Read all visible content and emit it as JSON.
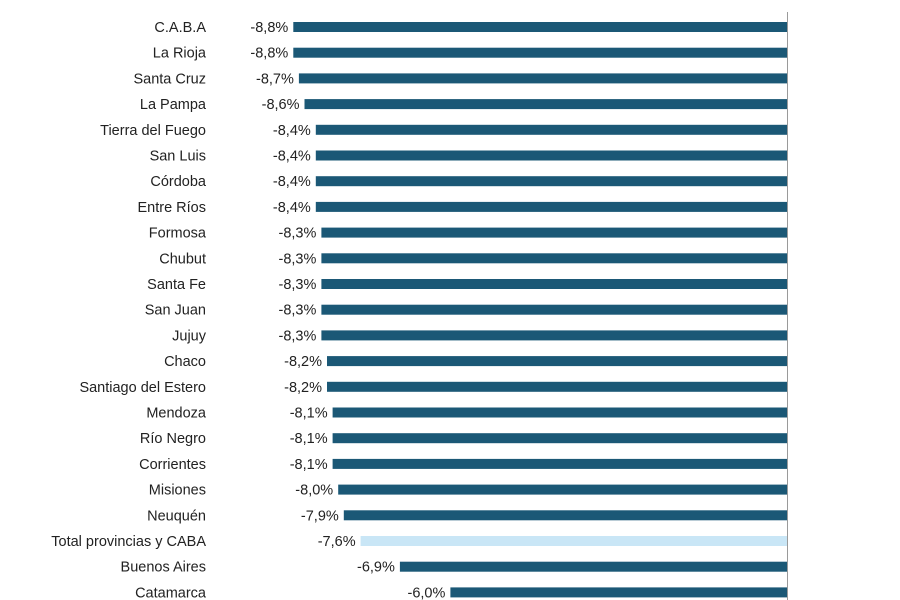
{
  "chart_data": {
    "type": "bar",
    "orientation": "horizontal",
    "bar_direction": "negative-leftward-from-zero-on-right",
    "title": "",
    "xlabel": "",
    "ylabel": "",
    "xlim": [
      -8.8,
      0
    ],
    "grid": false,
    "legend": "none",
    "categories": [
      "C.A.B.A",
      "La Rioja",
      "Santa Cruz",
      "La Pampa",
      "Tierra del Fuego",
      "San Luis",
      "Córdoba",
      "Entre Ríos",
      "Formosa",
      "Chubut",
      "Santa Fe",
      "San Juan",
      "Jujuy",
      "Chaco",
      "Santiago del Estero",
      "Mendoza",
      "Río Negro",
      "Corrientes",
      "Misiones",
      "Neuquén",
      "Total provincias y CABA",
      "Buenos Aires",
      "Catamarca"
    ],
    "values": [
      -8.8,
      -8.8,
      -8.7,
      -8.6,
      -8.4,
      -8.4,
      -8.4,
      -8.4,
      -8.3,
      -8.3,
      -8.3,
      -8.3,
      -8.3,
      -8.2,
      -8.2,
      -8.1,
      -8.1,
      -8.1,
      -8.0,
      -7.9,
      -7.6,
      -6.9,
      -6.0
    ],
    "value_labels": [
      "-8,8%",
      "-8,8%",
      "-8,7%",
      "-8,6%",
      "-8,4%",
      "-8,4%",
      "-8,4%",
      "-8,4%",
      "-8,3%",
      "-8,3%",
      "-8,3%",
      "-8,3%",
      "-8,3%",
      "-8,2%",
      "-8,2%",
      "-8,1%",
      "-8,1%",
      "-8,1%",
      "-8,0%",
      "-7,9%",
      "-7,6%",
      "-6,9%",
      "-6,0%"
    ],
    "highlight_category": "Total provincias y CABA",
    "colors": {
      "bar": "#1b5876",
      "highlight": "#c9e6f6",
      "axis": "#9a9a9a",
      "text": "#222222"
    }
  }
}
